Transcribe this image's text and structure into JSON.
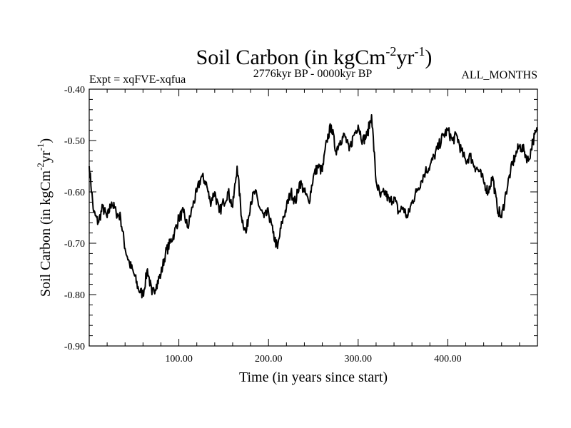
{
  "chart_data": {
    "type": "line",
    "title": "Soil Carbon (in kgCm",
    "title_sup1": "-2",
    "title_mid": "yr",
    "title_sup2": "-1",
    "title_end": ")",
    "left_label": "Expt = xqFVE-xqfua",
    "center_label": "2776kyr BP - 0000kyr BP",
    "right_label": "ALL_MONTHS",
    "xlabel": "Time (in years since start)",
    "ylabel": "Soil Carbon (in kgCm",
    "ylabel_sup1": "-2",
    "ylabel_mid": "yr",
    "ylabel_sup2": "-1",
    "ylabel_end": ")",
    "xlim": [
      0,
      500
    ],
    "ylim": [
      -0.9,
      -0.4
    ],
    "xticks": [
      100,
      200,
      300,
      400
    ],
    "xtick_labels": [
      "100.00",
      "200.00",
      "300.00",
      "400.00"
    ],
    "yticks": [
      -0.9,
      -0.8,
      -0.7,
      -0.6,
      -0.5,
      -0.4
    ],
    "ytick_labels": [
      "-0.90",
      "-0.80",
      "-0.70",
      "-0.60",
      "-0.50",
      "-0.40"
    ],
    "series": [
      {
        "name": "soil_carbon",
        "color": "#000000",
        "x": [
          0,
          5,
          10,
          15,
          20,
          25,
          30,
          35,
          40,
          45,
          50,
          55,
          60,
          65,
          70,
          75,
          80,
          85,
          90,
          95,
          100,
          105,
          110,
          115,
          120,
          125,
          130,
          135,
          140,
          145,
          150,
          155,
          160,
          165,
          170,
          175,
          180,
          185,
          190,
          195,
          200,
          205,
          210,
          215,
          220,
          225,
          230,
          235,
          240,
          245,
          250,
          255,
          260,
          265,
          270,
          275,
          280,
          285,
          290,
          295,
          300,
          305,
          310,
          315,
          320,
          325,
          330,
          335,
          340,
          345,
          350,
          355,
          360,
          365,
          370,
          375,
          380,
          385,
          390,
          395,
          400,
          405,
          410,
          415,
          420,
          425,
          430,
          435,
          440,
          445,
          450,
          455,
          460,
          465,
          470,
          475,
          480,
          485,
          490,
          495,
          500
        ],
        "values": [
          -0.55,
          -0.64,
          -0.66,
          -0.63,
          -0.65,
          -0.62,
          -0.64,
          -0.65,
          -0.71,
          -0.74,
          -0.76,
          -0.79,
          -0.8,
          -0.75,
          -0.8,
          -0.78,
          -0.76,
          -0.72,
          -0.7,
          -0.68,
          -0.65,
          -0.64,
          -0.67,
          -0.63,
          -0.6,
          -0.57,
          -0.58,
          -0.62,
          -0.6,
          -0.64,
          -0.62,
          -0.6,
          -0.63,
          -0.55,
          -0.65,
          -0.68,
          -0.62,
          -0.6,
          -0.63,
          -0.65,
          -0.64,
          -0.68,
          -0.71,
          -0.66,
          -0.63,
          -0.6,
          -0.62,
          -0.58,
          -0.6,
          -0.62,
          -0.57,
          -0.55,
          -0.56,
          -0.5,
          -0.47,
          -0.52,
          -0.5,
          -0.49,
          -0.52,
          -0.49,
          -0.47,
          -0.5,
          -0.49,
          -0.45,
          -0.58,
          -0.61,
          -0.6,
          -0.62,
          -0.61,
          -0.64,
          -0.63,
          -0.65,
          -0.62,
          -0.6,
          -0.58,
          -0.56,
          -0.55,
          -0.53,
          -0.51,
          -0.49,
          -0.48,
          -0.5,
          -0.49,
          -0.52,
          -0.54,
          -0.53,
          -0.55,
          -0.56,
          -0.58,
          -0.6,
          -0.57,
          -0.63,
          -0.65,
          -0.6,
          -0.56,
          -0.53,
          -0.51,
          -0.52,
          -0.54,
          -0.5,
          -0.48
        ]
      }
    ]
  }
}
